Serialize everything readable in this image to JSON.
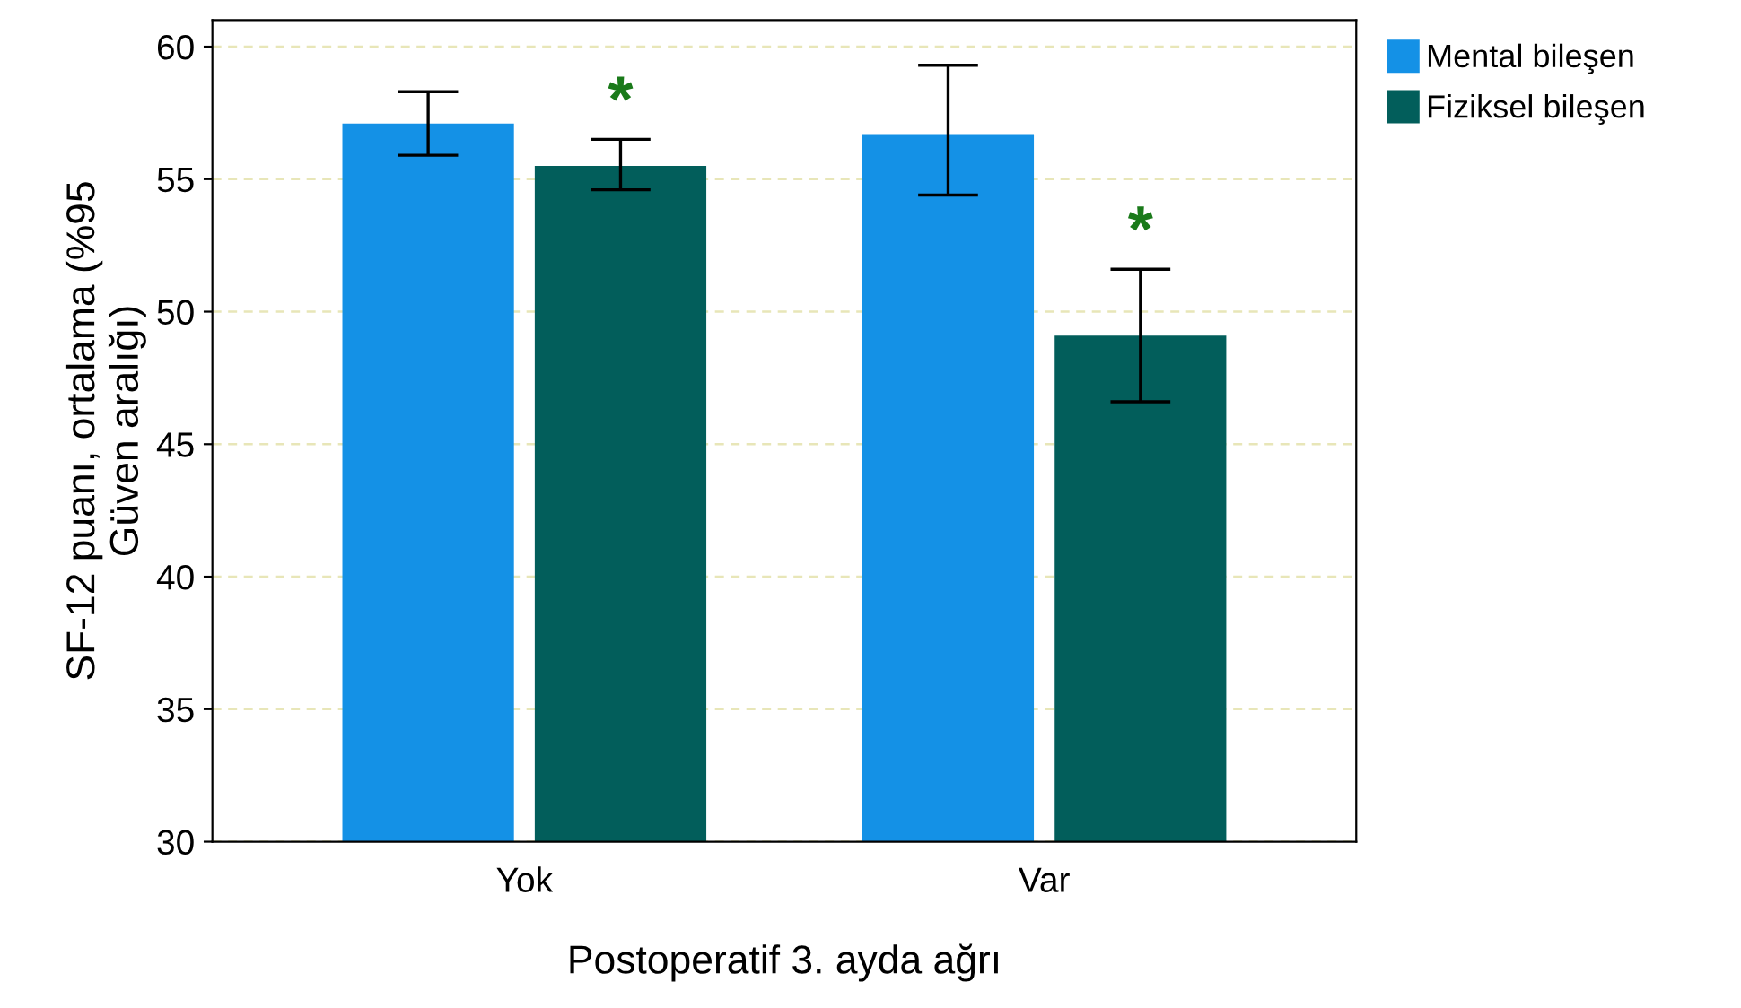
{
  "chart_data": {
    "type": "bar",
    "xlabel": "Postoperatif 3. ayda ağrı",
    "ylabel": "SF-12 puanı, ortalama (%95\nGüven aralığı)",
    "categories": [
      "Yok",
      "Var"
    ],
    "series": [
      {
        "name": "Mental bileşen",
        "color": "#1491e6",
        "values": [
          57.1,
          56.7
        ],
        "errors": [
          [
            55.9,
            58.3
          ],
          [
            54.4,
            59.3
          ]
        ]
      },
      {
        "name": "Fiziksel bileşen",
        "color": "#025e5b",
        "values": [
          55.5,
          49.1
        ],
        "errors": [
          [
            54.6,
            56.5
          ],
          [
            46.6,
            51.6
          ]
        ]
      }
    ],
    "annotations": [
      "*",
      "*"
    ],
    "ylim": [
      30,
      61
    ],
    "yticks": [
      30,
      35,
      40,
      45,
      50,
      55,
      60
    ],
    "grid": "y",
    "legend": "top right"
  }
}
